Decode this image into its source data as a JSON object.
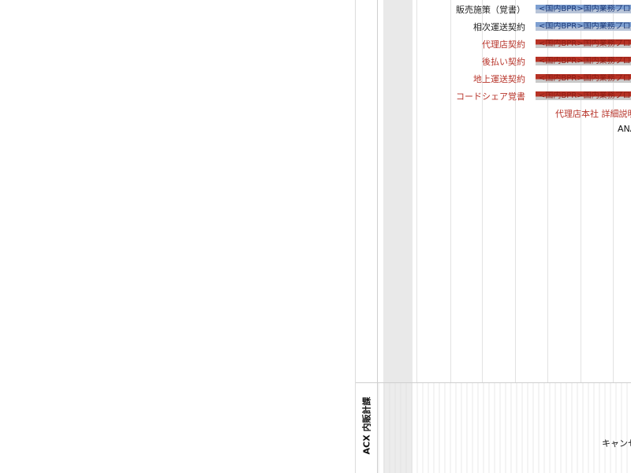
{
  "tasks": [
    {
      "label": "販売施策（覚書）",
      "style": "normal",
      "bar_text": "<国内BPR>国内業務プロ",
      "bar_color": "blue"
    },
    {
      "label": "相次運送契約",
      "style": "normal",
      "bar_text": "<国内BPR>国内業務プロ",
      "bar_color": "blue"
    },
    {
      "label": "代理店契約",
      "style": "red",
      "bar_text": "<国内BPR>国内業務プロ",
      "bar_color": "red"
    },
    {
      "label": "後払い契約",
      "style": "red",
      "bar_text": "<国内BPR>国内業務プロ",
      "bar_color": "red"
    },
    {
      "label": "地上運送契約",
      "style": "red",
      "bar_text": "<国内BPR>国内業務プロ",
      "bar_color": "red"
    },
    {
      "label": "コードシェア覚書",
      "style": "red",
      "bar_text": "<国内BPR>国内業務プロ",
      "bar_color": "red"
    }
  ],
  "notes": {
    "agency_detail": "代理店本社 詳細説明",
    "ana": "ANA"
  },
  "section": {
    "label": "ACX 内販計課",
    "cancel_text": "キャンセ"
  },
  "colors": {
    "bar_blue": "#7d9fd1",
    "bar_red": "#b73225",
    "label_red": "#b7342a"
  }
}
